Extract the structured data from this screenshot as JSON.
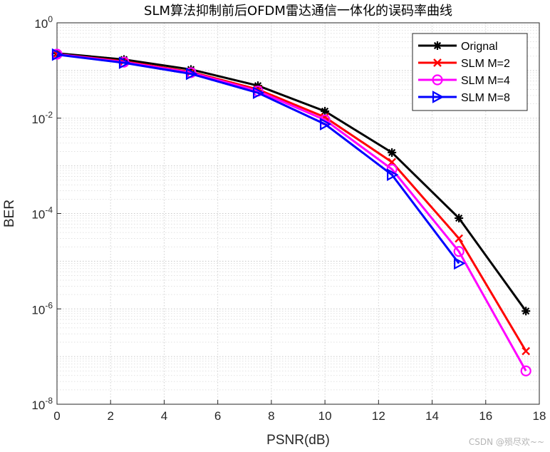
{
  "chart_data": {
    "type": "line",
    "title": "SLM算法抑制前后OFDM雷达通信一体化的误码率曲线",
    "xlabel": "PSNR(dB)",
    "ylabel": "BER",
    "xlim": [
      0,
      18
    ],
    "ylim": [
      1e-08,
      1
    ],
    "yscale": "log",
    "grid": true,
    "minor_grid": true,
    "legend_position": "top-right",
    "x_ticks": [
      0,
      2,
      4,
      6,
      8,
      10,
      12,
      14,
      16,
      18
    ],
    "y_tick_base": "10",
    "y_tick_exponents": [
      "0",
      "-2",
      "-4",
      "-6",
      "-8"
    ],
    "series": [
      {
        "name": "Orignal",
        "color": "#000000",
        "marker": "asterisk",
        "x": [
          0,
          2.5,
          5,
          7.5,
          10,
          12.5,
          15,
          17.5
        ],
        "y": [
          0.23,
          0.17,
          0.105,
          0.048,
          0.014,
          0.0019,
          8e-05,
          9e-07
        ]
      },
      {
        "name": "SLM M=2",
        "color": "#ff0000",
        "marker": "x",
        "x": [
          0,
          2.5,
          5,
          7.5,
          10,
          12.5,
          15,
          17.5
        ],
        "y": [
          0.22,
          0.155,
          0.093,
          0.04,
          0.0105,
          0.0012,
          3e-05,
          1.3e-07
        ]
      },
      {
        "name": "SLM M=4",
        "color": "#ff00ff",
        "marker": "circle",
        "x": [
          0,
          2.5,
          5,
          7.5,
          10,
          12.5,
          15,
          17.5
        ],
        "y": [
          0.22,
          0.15,
          0.09,
          0.037,
          0.0092,
          0.00085,
          1.6e-05,
          5e-08
        ]
      },
      {
        "name": "SLM M=8",
        "color": "#0000ff",
        "marker": "triangle-right",
        "x": [
          0,
          2.5,
          5,
          7.5,
          10,
          12.5,
          15
        ],
        "y": [
          0.215,
          0.145,
          0.085,
          0.034,
          0.0075,
          0.00065,
          9e-06
        ]
      }
    ]
  },
  "watermark": "CSDN @殒尽欢~~"
}
